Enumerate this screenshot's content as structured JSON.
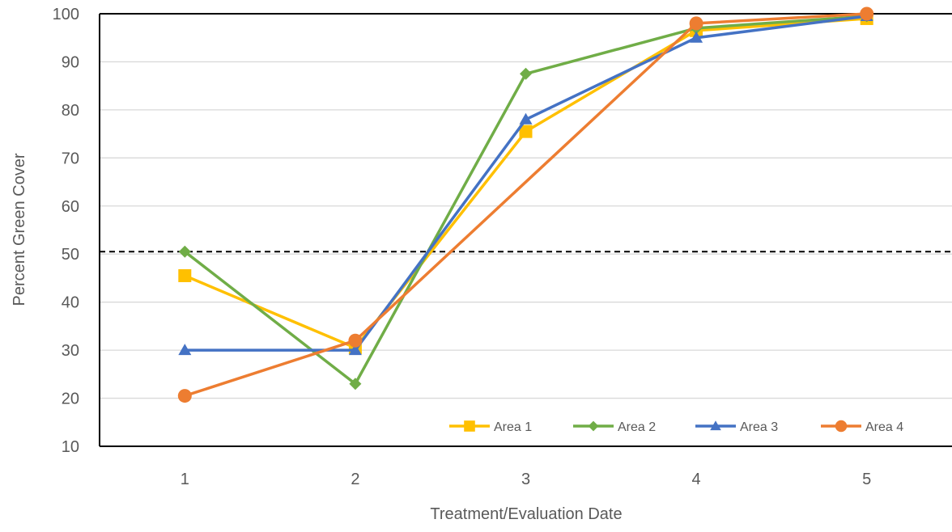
{
  "chart_data": {
    "type": "line",
    "title": "",
    "xlabel": "Treatment/Evaluation Date",
    "ylabel": "Percent Green Cover",
    "categories": [
      "1",
      "2",
      "3",
      "4",
      "5"
    ],
    "ylim": [
      10,
      100
    ],
    "yticks": [
      "10",
      "20",
      "30",
      "40",
      "50",
      "60",
      "70",
      "80",
      "90",
      "100"
    ],
    "grid": true,
    "legend_position": "bottom-right",
    "reference_line": {
      "y": 50.5,
      "style": "dashed",
      "color": "#000000"
    },
    "series": [
      {
        "name": "Area 1",
        "color": "#FFC000",
        "marker": "square",
        "values": [
          45.5,
          30.5,
          75.5,
          96.5,
          99.0
        ]
      },
      {
        "name": "Area 2",
        "color": "#70AD47",
        "marker": "diamond",
        "values": [
          50.5,
          23.0,
          87.5,
          97.0,
          99.5
        ]
      },
      {
        "name": "Area 3",
        "color": "#4472C4",
        "marker": "triangle",
        "values": [
          30.0,
          30.0,
          78.0,
          95.0,
          99.5
        ]
      },
      {
        "name": "Area 4",
        "color": "#ED7D31",
        "marker": "circle",
        "values": [
          20.5,
          32.0,
          null,
          98.0,
          100.0
        ]
      }
    ]
  }
}
